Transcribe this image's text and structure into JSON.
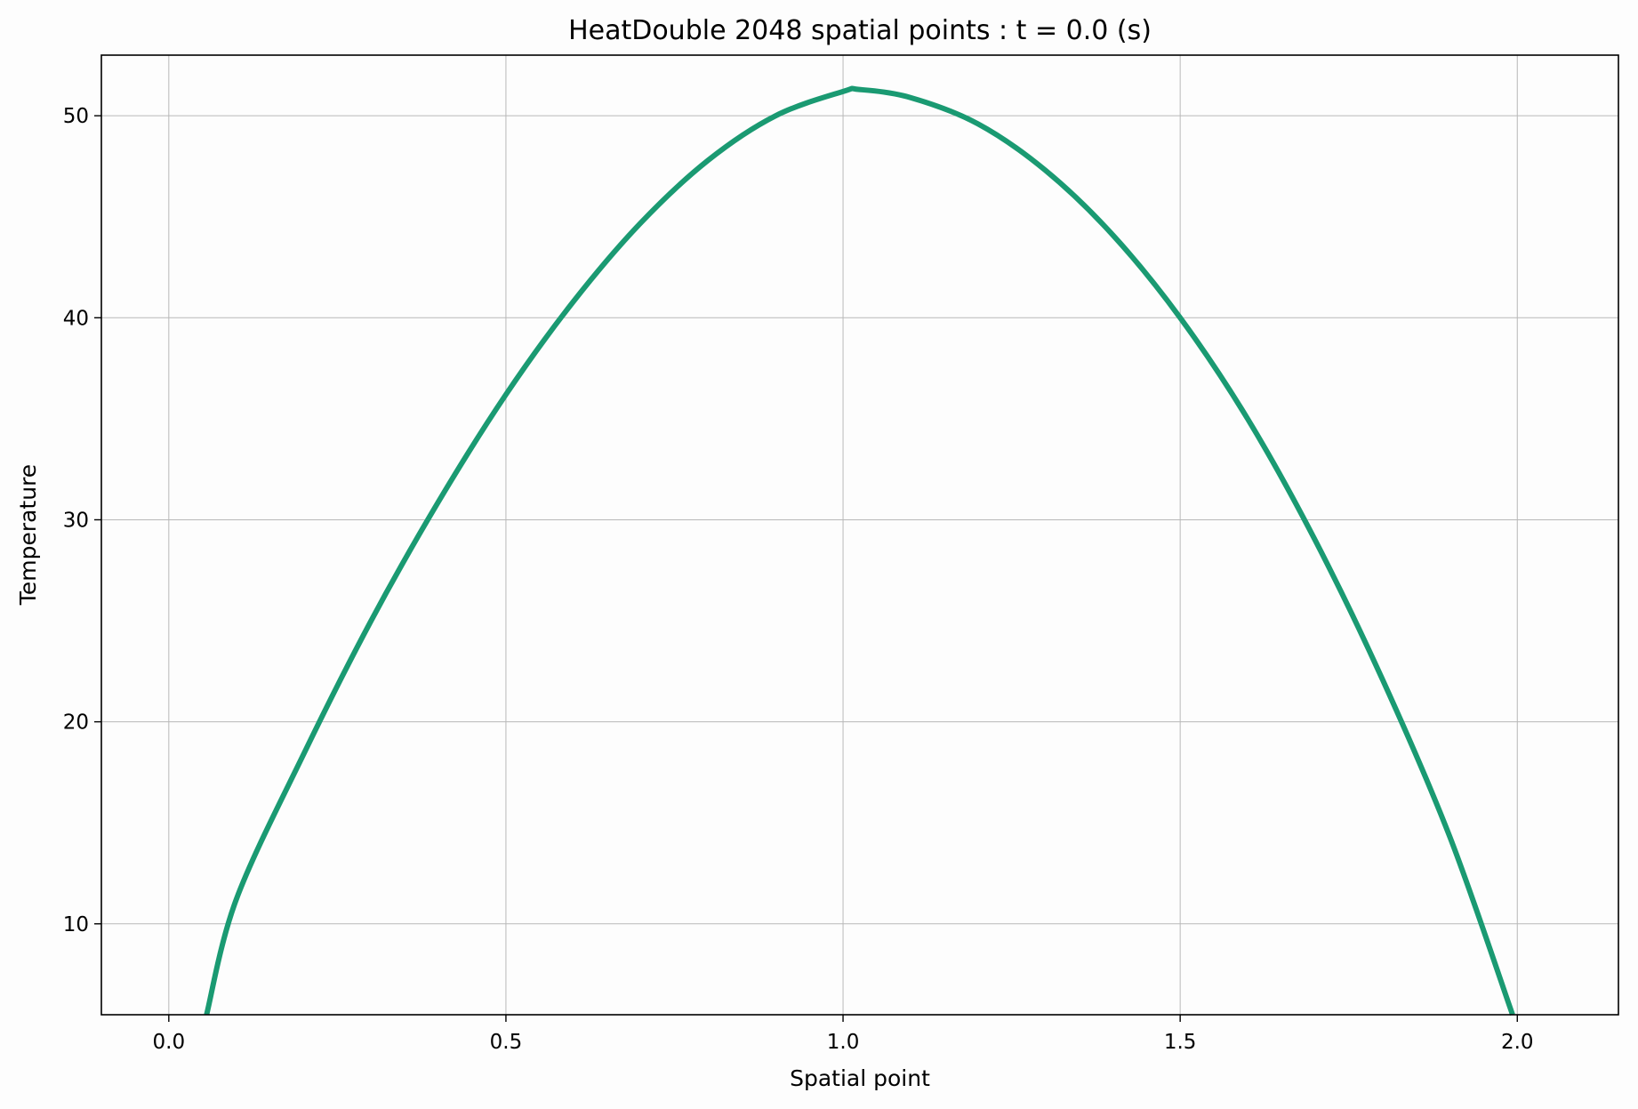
{
  "chart_data": {
    "type": "line",
    "title": "HeatDouble 2048 spatial points : t = 0.0 (s)",
    "xlabel": "Spatial point",
    "ylabel": "Temperature",
    "xlim": [
      -0.1,
      2.15
    ],
    "ylim": [
      5.5,
      53.0
    ],
    "xticks": [
      0.0,
      0.5,
      1.0,
      1.5,
      2.0
    ],
    "xtick_labels": [
      "0.0",
      "0.5",
      "1.0",
      "1.5",
      "2.0"
    ],
    "yticks": [
      10,
      20,
      30,
      40,
      50
    ],
    "ytick_labels": [
      "10",
      "20",
      "30",
      "40",
      "50"
    ],
    "grid": true,
    "series": [
      {
        "color": "#1a9a72",
        "x": [
          0.056,
          0.1,
          0.2,
          0.3,
          0.4,
          0.5,
          0.6,
          0.7,
          0.8,
          0.9,
          1.0,
          1.024,
          1.1,
          1.2,
          1.3,
          1.4,
          1.5,
          1.6,
          1.7,
          1.8,
          1.9,
          1.993
        ],
        "y": [
          5.5,
          11.2,
          18.4,
          25.0,
          30.9,
          36.2,
          40.8,
          44.7,
          47.8,
          50.0,
          51.2,
          51.3,
          50.9,
          49.6,
          47.3,
          44.1,
          40.0,
          35.0,
          29.0,
          22.1,
          14.3,
          5.5
        ]
      }
    ]
  }
}
